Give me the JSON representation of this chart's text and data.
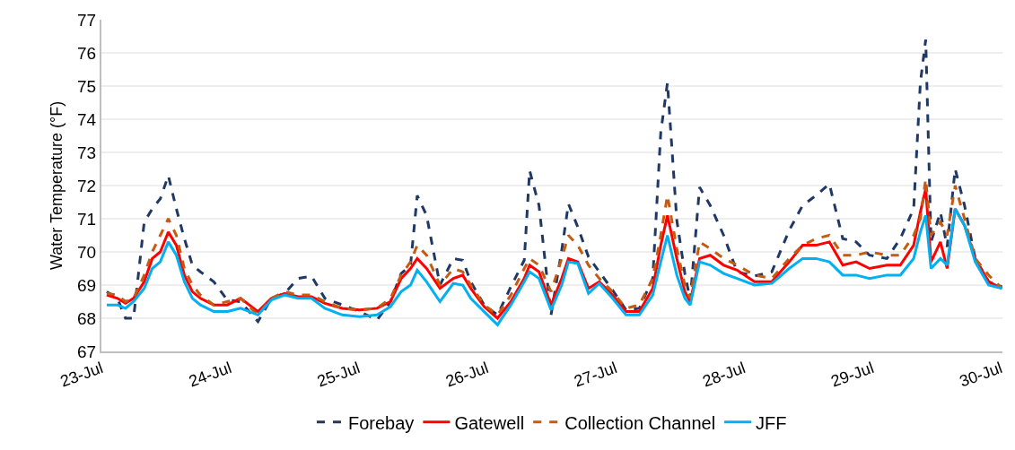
{
  "chart_data": {
    "type": "line",
    "ylabel": "Water Temperature (°F)",
    "x": [
      "--07-23T01:00",
      "--07-23T03:00",
      "--07-23T04:30",
      "--07-23T06:00",
      "--07-23T08:00",
      "--07-23T09:30",
      "--07-23T11:00",
      "--07-23T12:30",
      "--07-23T14:00",
      "--07-23T15:30",
      "--07-23T17:00",
      "--07-23T18:30",
      "--07-23T21:00",
      "--07-23T23:30",
      "--07-24T02:00",
      "--07-24T05:15",
      "--07-24T07:45",
      "--07-24T10:15",
      "--07-24T12:45",
      "--07-24T15:15",
      "--07-24T17:45",
      "--07-24T21:00",
      "--07-25T00:15",
      "--07-25T03:30",
      "--07-25T06:00",
      "--07-25T08:00",
      "--07-25T09:45",
      "--07-25T11:00",
      "--07-25T12:45",
      "--07-25T15:15",
      "--07-25T17:45",
      "--07-25T19:30",
      "--07-25T21:00",
      "--07-25T23:30",
      "--07-26T02:00",
      "--07-26T04:30",
      "--07-26T07:00",
      "--07-26T08:00",
      "--07-26T09:45",
      "--07-26T12:00",
      "--07-26T14:00",
      "--07-26T15:15",
      "--07-26T17:00",
      "--07-26T19:00",
      "--07-26T21:00",
      "--07-26T23:30",
      "--07-27T02:00",
      "--07-27T04:30",
      "--07-27T07:00",
      "--07-27T08:30",
      "--07-27T09:45",
      "--07-27T11:30",
      "--07-27T13:00",
      "--07-27T14:00",
      "--07-27T15:45",
      "--07-27T17:45",
      "--07-27T20:15",
      "--07-27T22:45",
      "--07-28T02:00",
      "--07-28T05:15",
      "--07-28T08:30",
      "--07-28T11:00",
      "--07-28T13:30",
      "--07-28T16:00",
      "--07-28T18:30",
      "--07-28T21:00",
      "--07-28T23:30",
      "--07-29T02:45",
      "--07-29T05:15",
      "--07-29T07:45",
      "--07-29T09:00",
      "--07-29T10:00",
      "--07-29T11:00",
      "--07-29T12:45",
      "--07-29T14:00",
      "--07-29T15:30",
      "--07-29T17:15",
      "--07-29T19:15",
      "--07-29T21:45",
      "--07-30T00:15"
    ],
    "series": [
      {
        "name": "Forebay",
        "color": "#1f3864",
        "line_style": "dashed",
        "values": [
          68.8,
          68.6,
          68.0,
          68.0,
          70.9,
          71.3,
          71.6,
          72.3,
          71.3,
          70.4,
          69.6,
          69.4,
          69.1,
          68.55,
          68.5,
          67.9,
          68.6,
          68.75,
          69.2,
          69.27,
          68.6,
          68.4,
          68.2,
          67.95,
          68.5,
          69.35,
          69.6,
          71.7,
          71.1,
          69.0,
          69.8,
          69.75,
          69.1,
          68.4,
          68.1,
          68.95,
          69.75,
          72.45,
          71.4,
          68.1,
          70.05,
          71.45,
          70.75,
          69.85,
          69.4,
          68.85,
          68.25,
          68.3,
          69.2,
          73.6,
          75.1,
          70.95,
          69.35,
          68.55,
          71.95,
          71.4,
          70.5,
          69.4,
          69.27,
          69.4,
          70.65,
          71.4,
          71.7,
          72.05,
          70.4,
          70.3,
          69.9,
          69.8,
          70.4,
          71.3,
          75.1,
          76.4,
          70.3,
          71.2,
          70.15,
          72.5,
          71.4,
          69.8,
          69.1,
          68.95
        ]
      },
      {
        "name": "Gatewell",
        "color": "#ff0000",
        "line_style": "solid",
        "values": [
          68.7,
          68.6,
          68.45,
          68.6,
          69.1,
          69.8,
          70.0,
          70.6,
          70.2,
          69.3,
          68.8,
          68.6,
          68.4,
          68.4,
          68.6,
          68.2,
          68.6,
          68.75,
          68.65,
          68.65,
          68.45,
          68.3,
          68.25,
          68.3,
          68.5,
          69.2,
          69.5,
          69.8,
          69.5,
          68.9,
          69.2,
          69.3,
          68.9,
          68.35,
          68.0,
          68.5,
          69.2,
          69.6,
          69.4,
          68.4,
          69.2,
          69.8,
          69.7,
          68.9,
          69.1,
          68.7,
          68.2,
          68.2,
          68.9,
          70.2,
          71.1,
          69.8,
          68.8,
          68.5,
          69.8,
          69.9,
          69.6,
          69.45,
          69.1,
          69.1,
          69.7,
          70.2,
          70.2,
          70.3,
          69.6,
          69.7,
          69.5,
          69.6,
          69.6,
          70.2,
          71.2,
          71.9,
          69.7,
          70.3,
          69.5,
          71.3,
          70.8,
          69.8,
          69.1,
          68.9
        ]
      },
      {
        "name": "Collection Channel",
        "color": "#c55a11",
        "line_style": "dashed",
        "values": [
          68.75,
          68.7,
          68.5,
          68.6,
          69.3,
          70.0,
          70.5,
          71.0,
          70.5,
          69.5,
          69.0,
          68.7,
          68.4,
          68.5,
          68.6,
          68.1,
          68.6,
          68.8,
          68.7,
          68.7,
          68.5,
          68.3,
          68.25,
          68.3,
          68.6,
          69.3,
          69.7,
          70.2,
          69.9,
          69.0,
          69.5,
          69.4,
          69.0,
          68.4,
          68.1,
          68.7,
          69.5,
          69.8,
          69.6,
          68.8,
          69.8,
          70.5,
          70.2,
          69.6,
          69.2,
          68.8,
          68.3,
          68.4,
          69.2,
          70.5,
          71.7,
          70.1,
          69.0,
          68.6,
          70.3,
          70.1,
          69.8,
          69.6,
          69.3,
          69.2,
          69.8,
          70.2,
          70.4,
          70.5,
          69.9,
          69.9,
          70.0,
          69.9,
          69.9,
          70.5,
          71.0,
          72.2,
          70.5,
          70.9,
          70.5,
          72.0,
          71.0,
          69.8,
          69.3,
          68.9
        ]
      },
      {
        "name": "JFF",
        "color": "#00b0f0",
        "line_style": "solid",
        "values": [
          68.4,
          68.4,
          68.3,
          68.5,
          68.9,
          69.5,
          69.7,
          70.3,
          69.9,
          69.1,
          68.6,
          68.4,
          68.2,
          68.2,
          68.3,
          68.1,
          68.55,
          68.7,
          68.6,
          68.6,
          68.3,
          68.1,
          68.05,
          68.1,
          68.35,
          68.8,
          69.0,
          69.45,
          69.1,
          68.5,
          69.05,
          69.0,
          68.6,
          68.2,
          67.8,
          68.4,
          69.1,
          69.4,
          69.2,
          68.25,
          69.0,
          69.7,
          69.65,
          68.75,
          69.05,
          68.6,
          68.1,
          68.1,
          68.7,
          69.7,
          70.5,
          69.3,
          68.6,
          68.4,
          69.7,
          69.6,
          69.35,
          69.2,
          69.0,
          69.05,
          69.5,
          69.8,
          69.8,
          69.7,
          69.3,
          69.3,
          69.2,
          69.3,
          69.3,
          69.8,
          70.6,
          71.1,
          69.5,
          69.8,
          69.6,
          71.3,
          70.8,
          69.7,
          69.0,
          68.9
        ]
      }
    ],
    "xlim": [
      "--07-23T00:00",
      "--07-30T00:20"
    ],
    "xticks": [
      {
        "value": "--07-23",
        "label": "23-Jul"
      },
      {
        "value": "--07-24",
        "label": "24-Jul"
      },
      {
        "value": "--07-25",
        "label": "25-Jul"
      },
      {
        "value": "--07-26",
        "label": "26-Jul"
      },
      {
        "value": "--07-27",
        "label": "27-Jul"
      },
      {
        "value": "--07-28",
        "label": "28-Jul"
      },
      {
        "value": "--07-29",
        "label": "29-Jul"
      },
      {
        "value": "--07-30",
        "label": "30-Jul"
      }
    ],
    "ylim": [
      67,
      77
    ],
    "yticks": [
      67,
      68,
      69,
      70,
      71,
      72,
      73,
      74,
      75,
      76,
      77
    ],
    "grid": "y",
    "legend": "bottom",
    "marker": "none"
  }
}
